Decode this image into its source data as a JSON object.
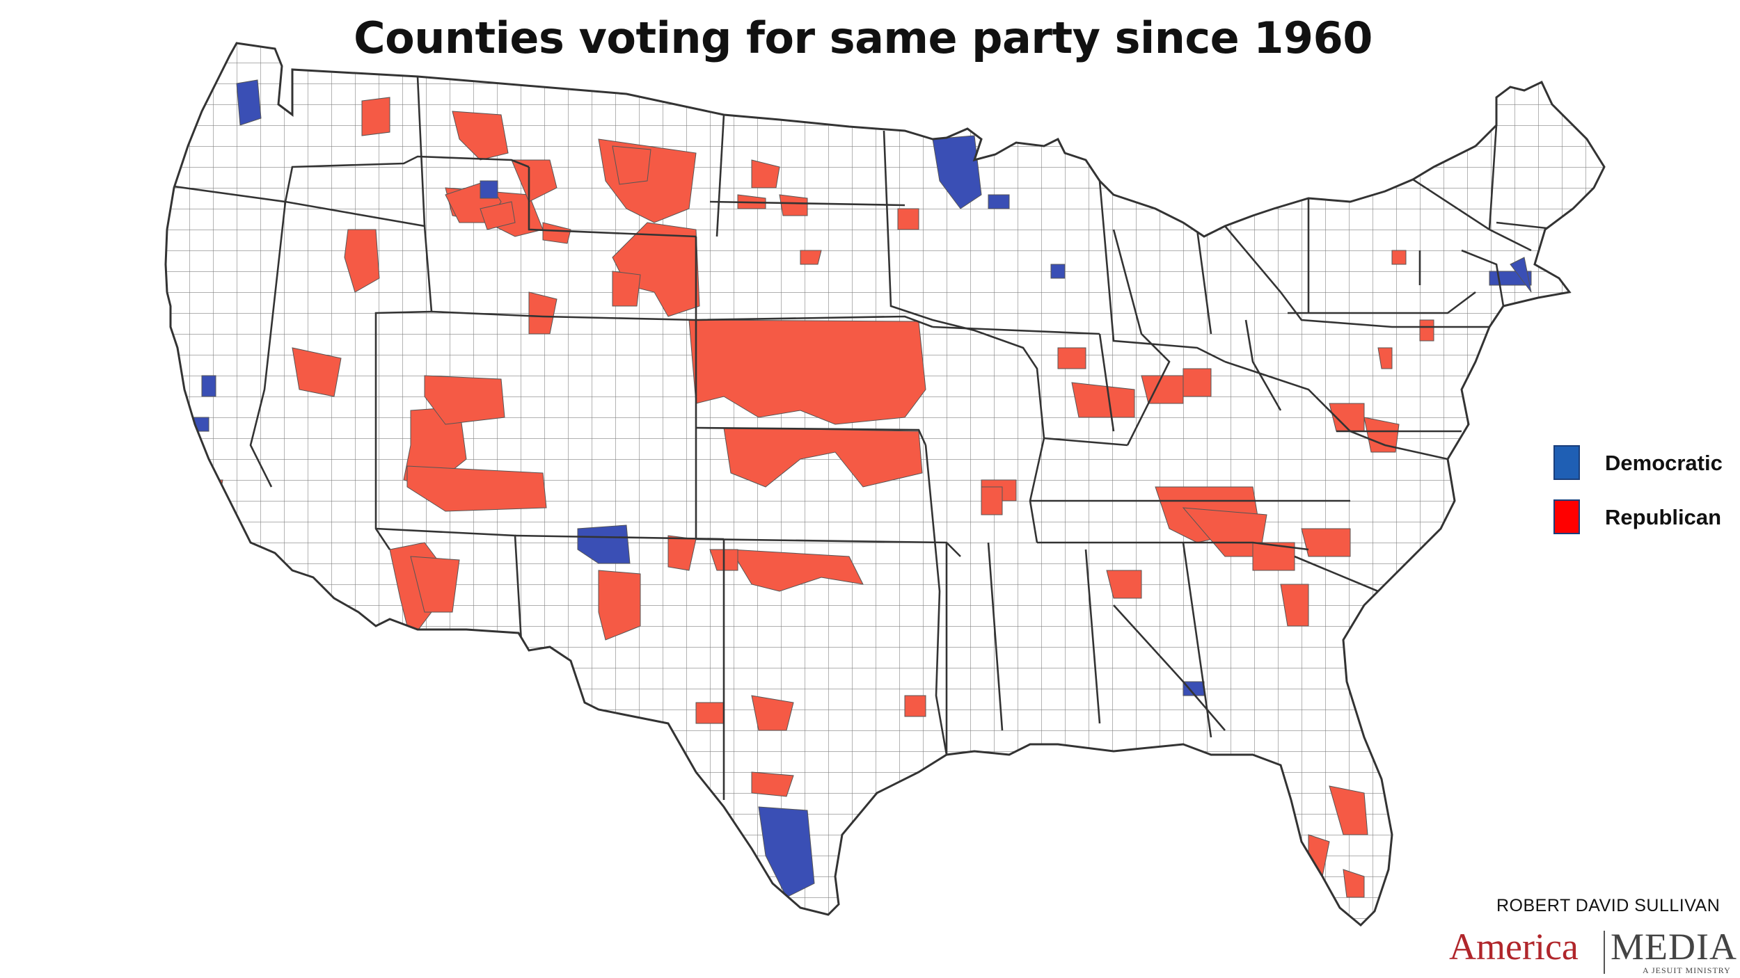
{
  "title": "Counties voting for same party since 1960",
  "legend": [
    {
      "label": "Democratic",
      "color": "#1f5fb4"
    },
    {
      "label": "Republican",
      "color": "#ff0000"
    }
  ],
  "colors": {
    "democratic_fill": "#3a4fb5",
    "republican_fill": "#f55a45",
    "county_border": "#555555",
    "state_border": "#333333",
    "land": "#ffffff"
  },
  "byline": "ROBERT DAVID SULLIVAN",
  "logo": {
    "america": "America",
    "media": "MEDIA",
    "tagline": "A JESUIT MINISTRY"
  }
}
